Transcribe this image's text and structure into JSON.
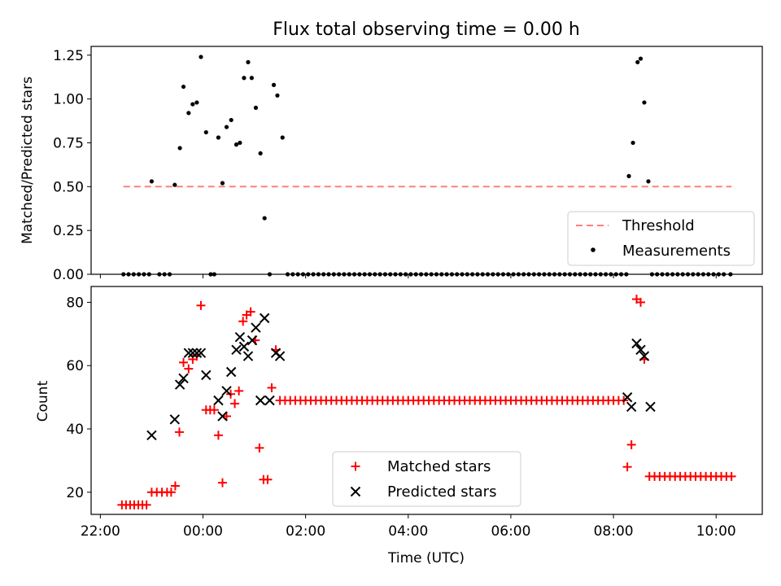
{
  "chart_data": [
    {
      "type": "scatter",
      "title": "Flux total observing time = 0.00 h",
      "xlabel": "",
      "ylabel": "Matched/Predicted stars",
      "xlim_hours": [
        21.82,
        34.9
      ],
      "ylim": [
        0.0,
        1.3
      ],
      "yticks": [
        0.0,
        0.25,
        0.5,
        0.75,
        1.0,
        1.25
      ],
      "ytick_labels": [
        "0.00",
        "0.25",
        "0.50",
        "0.75",
        "1.00",
        "1.25"
      ],
      "legend": {
        "position": "lower-right",
        "entries": [
          "Threshold",
          "Measurements"
        ]
      },
      "threshold": {
        "name": "Threshold",
        "value": 0.5,
        "x_start": 22.45,
        "x_end": 34.3,
        "color": "#ff7f7f"
      },
      "measurements": {
        "name": "Measurements",
        "color": "#000000",
        "points": [
          [
            22.45,
            0
          ],
          [
            22.55,
            0
          ],
          [
            22.65,
            0
          ],
          [
            22.75,
            0
          ],
          [
            22.85,
            0
          ],
          [
            22.95,
            0
          ],
          [
            23.0,
            0.53
          ],
          [
            23.15,
            0
          ],
          [
            23.25,
            0
          ],
          [
            23.35,
            0
          ],
          [
            23.45,
            0.51
          ],
          [
            23.55,
            0.72
          ],
          [
            23.62,
            1.07
          ],
          [
            23.72,
            0.92
          ],
          [
            23.8,
            0.97
          ],
          [
            23.88,
            0.98
          ],
          [
            23.96,
            1.24
          ],
          [
            24.06,
            0.81
          ],
          [
            24.15,
            0
          ],
          [
            24.22,
            0
          ],
          [
            24.3,
            0.78
          ],
          [
            24.38,
            0.52
          ],
          [
            24.46,
            0.84
          ],
          [
            24.55,
            0.88
          ],
          [
            24.65,
            0.74
          ],
          [
            24.72,
            0.75
          ],
          [
            24.8,
            1.12
          ],
          [
            24.88,
            1.21
          ],
          [
            24.95,
            1.12
          ],
          [
            25.03,
            0.95
          ],
          [
            25.12,
            0.69
          ],
          [
            25.2,
            0.32
          ],
          [
            25.3,
            0
          ],
          [
            25.38,
            1.08
          ],
          [
            25.45,
            1.02
          ],
          [
            25.55,
            0.78
          ],
          [
            25.65,
            0
          ],
          [
            25.75,
            0
          ],
          [
            25.85,
            0
          ],
          [
            25.95,
            0
          ],
          [
            26.05,
            0
          ],
          [
            26.15,
            0
          ],
          [
            26.25,
            0
          ],
          [
            26.35,
            0
          ],
          [
            26.45,
            0
          ],
          [
            26.55,
            0
          ],
          [
            26.65,
            0
          ],
          [
            26.75,
            0
          ],
          [
            26.85,
            0
          ],
          [
            26.95,
            0
          ],
          [
            27.05,
            0
          ],
          [
            27.15,
            0
          ],
          [
            27.25,
            0
          ],
          [
            27.35,
            0
          ],
          [
            27.45,
            0
          ],
          [
            27.55,
            0
          ],
          [
            27.65,
            0
          ],
          [
            27.75,
            0
          ],
          [
            27.85,
            0
          ],
          [
            27.95,
            0
          ],
          [
            28.05,
            0
          ],
          [
            28.15,
            0
          ],
          [
            28.25,
            0
          ],
          [
            28.35,
            0
          ],
          [
            28.45,
            0
          ],
          [
            28.55,
            0
          ],
          [
            28.65,
            0
          ],
          [
            28.75,
            0
          ],
          [
            28.85,
            0
          ],
          [
            28.95,
            0
          ],
          [
            29.05,
            0
          ],
          [
            29.15,
            0
          ],
          [
            29.25,
            0
          ],
          [
            29.35,
            0
          ],
          [
            29.45,
            0
          ],
          [
            29.55,
            0
          ],
          [
            29.65,
            0
          ],
          [
            29.75,
            0
          ],
          [
            29.85,
            0
          ],
          [
            29.95,
            0
          ],
          [
            30.05,
            0
          ],
          [
            30.15,
            0
          ],
          [
            30.25,
            0
          ],
          [
            30.35,
            0
          ],
          [
            30.45,
            0
          ],
          [
            30.55,
            0
          ],
          [
            30.65,
            0
          ],
          [
            30.75,
            0
          ],
          [
            30.85,
            0
          ],
          [
            30.95,
            0
          ],
          [
            31.05,
            0
          ],
          [
            31.15,
            0
          ],
          [
            31.25,
            0
          ],
          [
            31.35,
            0
          ],
          [
            31.45,
            0
          ],
          [
            31.55,
            0
          ],
          [
            31.65,
            0
          ],
          [
            31.75,
            0
          ],
          [
            31.85,
            0
          ],
          [
            31.95,
            0
          ],
          [
            32.05,
            0
          ],
          [
            32.15,
            0
          ],
          [
            32.25,
            0
          ],
          [
            32.3,
            0.56
          ],
          [
            32.38,
            0.75
          ],
          [
            32.47,
            1.21
          ],
          [
            32.53,
            1.23
          ],
          [
            32.6,
            0.98
          ],
          [
            32.68,
            0.53
          ],
          [
            32.75,
            0
          ],
          [
            32.85,
            0
          ],
          [
            32.95,
            0
          ],
          [
            33.05,
            0
          ],
          [
            33.15,
            0
          ],
          [
            33.25,
            0
          ],
          [
            33.35,
            0
          ],
          [
            33.45,
            0
          ],
          [
            33.55,
            0
          ],
          [
            33.65,
            0
          ],
          [
            33.75,
            0
          ],
          [
            33.85,
            0
          ],
          [
            33.95,
            0
          ],
          [
            34.05,
            0
          ],
          [
            34.15,
            0
          ],
          [
            34.28,
            0
          ]
        ]
      }
    },
    {
      "type": "scatter",
      "title": "",
      "xlabel": "Time (UTC)",
      "ylabel": "Count",
      "xlim_hours": [
        21.82,
        34.9
      ],
      "xticks_hours": [
        22,
        24,
        26,
        28,
        30,
        32,
        34
      ],
      "xtick_labels": [
        "22:00",
        "00:00",
        "02:00",
        "04:00",
        "06:00",
        "08:00",
        "10:00"
      ],
      "ylim": [
        13,
        85
      ],
      "yticks": [
        20,
        40,
        60,
        80
      ],
      "ytick_labels": [
        "20",
        "40",
        "60",
        "80"
      ],
      "legend": {
        "position": "lower-center",
        "entries": [
          "Matched stars",
          "Predicted stars"
        ]
      },
      "matched": {
        "name": "Matched stars",
        "color": "#ff0000",
        "points": [
          [
            22.42,
            16
          ],
          [
            22.5,
            16
          ],
          [
            22.58,
            16
          ],
          [
            22.66,
            16
          ],
          [
            22.74,
            16
          ],
          [
            22.82,
            16
          ],
          [
            22.9,
            16
          ],
          [
            23.0,
            20
          ],
          [
            23.1,
            20
          ],
          [
            23.2,
            20
          ],
          [
            23.3,
            20
          ],
          [
            23.38,
            20
          ],
          [
            23.46,
            22
          ],
          [
            23.54,
            39
          ],
          [
            23.62,
            61
          ],
          [
            23.72,
            59
          ],
          [
            23.8,
            62
          ],
          [
            23.88,
            63
          ],
          [
            23.96,
            79
          ],
          [
            24.06,
            46
          ],
          [
            24.14,
            46
          ],
          [
            24.22,
            46
          ],
          [
            24.3,
            38
          ],
          [
            24.38,
            23
          ],
          [
            24.46,
            44
          ],
          [
            24.54,
            51
          ],
          [
            24.62,
            48
          ],
          [
            24.7,
            52
          ],
          [
            24.78,
            74
          ],
          [
            24.85,
            76
          ],
          [
            24.93,
            77
          ],
          [
            25.02,
            68
          ],
          [
            25.1,
            34
          ],
          [
            25.18,
            24
          ],
          [
            25.26,
            24
          ],
          [
            25.34,
            53
          ],
          [
            25.42,
            65
          ],
          [
            25.5,
            49
          ],
          [
            25.6,
            49
          ],
          [
            25.7,
            49
          ],
          [
            25.8,
            49
          ],
          [
            25.9,
            49
          ],
          [
            26.0,
            49
          ],
          [
            26.1,
            49
          ],
          [
            26.2,
            49
          ],
          [
            26.3,
            49
          ],
          [
            26.4,
            49
          ],
          [
            26.5,
            49
          ],
          [
            26.6,
            49
          ],
          [
            26.7,
            49
          ],
          [
            26.8,
            49
          ],
          [
            26.9,
            49
          ],
          [
            27.0,
            49
          ],
          [
            27.1,
            49
          ],
          [
            27.2,
            49
          ],
          [
            27.3,
            49
          ],
          [
            27.4,
            49
          ],
          [
            27.5,
            49
          ],
          [
            27.6,
            49
          ],
          [
            27.7,
            49
          ],
          [
            27.8,
            49
          ],
          [
            27.9,
            49
          ],
          [
            28.0,
            49
          ],
          [
            28.1,
            49
          ],
          [
            28.2,
            49
          ],
          [
            28.3,
            49
          ],
          [
            28.4,
            49
          ],
          [
            28.5,
            49
          ],
          [
            28.6,
            49
          ],
          [
            28.7,
            49
          ],
          [
            28.8,
            49
          ],
          [
            28.9,
            49
          ],
          [
            29.0,
            49
          ],
          [
            29.1,
            49
          ],
          [
            29.2,
            49
          ],
          [
            29.3,
            49
          ],
          [
            29.4,
            49
          ],
          [
            29.5,
            49
          ],
          [
            29.6,
            49
          ],
          [
            29.7,
            49
          ],
          [
            29.8,
            49
          ],
          [
            29.9,
            49
          ],
          [
            30.0,
            49
          ],
          [
            30.1,
            49
          ],
          [
            30.2,
            49
          ],
          [
            30.3,
            49
          ],
          [
            30.4,
            49
          ],
          [
            30.5,
            49
          ],
          [
            30.6,
            49
          ],
          [
            30.7,
            49
          ],
          [
            30.8,
            49
          ],
          [
            30.9,
            49
          ],
          [
            31.0,
            49
          ],
          [
            31.1,
            49
          ],
          [
            31.2,
            49
          ],
          [
            31.3,
            49
          ],
          [
            31.4,
            49
          ],
          [
            31.5,
            49
          ],
          [
            31.6,
            49
          ],
          [
            31.7,
            49
          ],
          [
            31.8,
            49
          ],
          [
            31.9,
            49
          ],
          [
            32.0,
            49
          ],
          [
            32.1,
            49
          ],
          [
            32.2,
            49
          ],
          [
            32.27,
            28
          ],
          [
            32.35,
            35
          ],
          [
            32.45,
            81
          ],
          [
            32.53,
            80
          ],
          [
            32.6,
            62
          ],
          [
            32.7,
            25
          ],
          [
            32.8,
            25
          ],
          [
            32.9,
            25
          ],
          [
            33.0,
            25
          ],
          [
            33.1,
            25
          ],
          [
            33.2,
            25
          ],
          [
            33.3,
            25
          ],
          [
            33.4,
            25
          ],
          [
            33.5,
            25
          ],
          [
            33.6,
            25
          ],
          [
            33.7,
            25
          ],
          [
            33.8,
            25
          ],
          [
            33.9,
            25
          ],
          [
            34.0,
            25
          ],
          [
            34.1,
            25
          ],
          [
            34.2,
            25
          ],
          [
            34.3,
            25
          ]
        ]
      },
      "predicted": {
        "name": "Predicted stars",
        "color": "#000000",
        "points": [
          [
            23.0,
            38
          ],
          [
            23.45,
            43
          ],
          [
            23.55,
            54
          ],
          [
            23.62,
            56
          ],
          [
            23.72,
            64
          ],
          [
            23.8,
            64
          ],
          [
            23.88,
            64
          ],
          [
            23.96,
            64
          ],
          [
            24.06,
            57
          ],
          [
            24.3,
            49
          ],
          [
            24.38,
            44
          ],
          [
            24.46,
            52
          ],
          [
            24.55,
            58
          ],
          [
            24.65,
            65
          ],
          [
            24.72,
            69
          ],
          [
            24.8,
            66
          ],
          [
            24.88,
            63
          ],
          [
            24.96,
            68
          ],
          [
            25.03,
            72
          ],
          [
            25.12,
            49
          ],
          [
            25.2,
            75
          ],
          [
            25.3,
            49
          ],
          [
            25.42,
            64
          ],
          [
            25.5,
            63
          ],
          [
            32.27,
            50
          ],
          [
            32.35,
            47
          ],
          [
            32.45,
            67
          ],
          [
            32.53,
            65
          ],
          [
            32.6,
            63
          ],
          [
            32.72,
            47
          ]
        ]
      }
    }
  ]
}
